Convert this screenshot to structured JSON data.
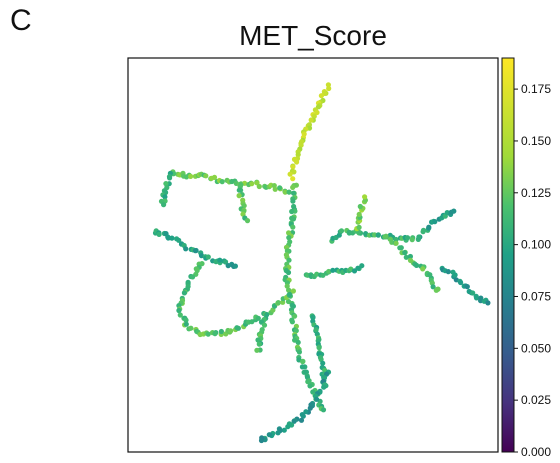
{
  "panel_letter": "C",
  "chart_data": {
    "type": "scatter",
    "title": "MET_Score",
    "xlabel": "",
    "ylabel": "",
    "axes_ticks": "none",
    "grid": false,
    "color_scale": {
      "name": "viridis",
      "min": 0.0,
      "max": 0.19,
      "ticks": [
        0.0,
        0.025,
        0.05,
        0.075,
        0.1,
        0.125,
        0.15,
        0.175
      ],
      "tick_labels": [
        "0.000",
        "0.025",
        "0.050",
        "0.075",
        "0.100",
        "0.125",
        "0.150",
        "0.175"
      ],
      "placement": "right"
    },
    "xlim": [
      0,
      100
    ],
    "ylim": [
      0,
      100
    ],
    "branches": [
      {
        "points": [
          [
            54,
            93
          ],
          [
            52,
            89
          ],
          [
            50,
            85
          ],
          [
            48,
            81
          ],
          [
            46,
            77
          ],
          [
            45,
            73
          ],
          [
            44,
            69
          ]
        ],
        "score": 0.16
      },
      {
        "points": [
          [
            12,
            71
          ],
          [
            16,
            70
          ],
          [
            20,
            70
          ],
          [
            25,
            69
          ],
          [
            30,
            68
          ],
          [
            35,
            68
          ],
          [
            40,
            67
          ],
          [
            44,
            66
          ]
        ],
        "score": 0.125
      },
      {
        "points": [
          [
            12,
            71
          ],
          [
            10,
            66
          ],
          [
            9,
            62
          ]
        ],
        "score": 0.11
      },
      {
        "points": [
          [
            30,
            68
          ],
          [
            31,
            62
          ],
          [
            32,
            58
          ]
        ],
        "score": 0.12
      },
      {
        "points": [
          [
            45,
            68
          ],
          [
            45,
            62
          ],
          [
            44,
            56
          ],
          [
            43,
            50
          ],
          [
            43,
            44
          ],
          [
            44,
            38
          ],
          [
            45,
            32
          ],
          [
            46,
            25
          ]
        ],
        "score": 0.12
      },
      {
        "points": [
          [
            46,
            25
          ],
          [
            48,
            20
          ],
          [
            50,
            16
          ],
          [
            53,
            10
          ]
        ],
        "score": 0.11
      },
      {
        "points": [
          [
            7,
            56
          ],
          [
            10,
            55
          ],
          [
            14,
            53
          ],
          [
            18,
            51
          ],
          [
            22,
            49
          ],
          [
            26,
            48
          ],
          [
            30,
            47
          ]
        ],
        "score": 0.095
      },
      {
        "points": [
          [
            20,
            48
          ],
          [
            17,
            44
          ],
          [
            15,
            40
          ],
          [
            14,
            36
          ],
          [
            16,
            32
          ],
          [
            20,
            30
          ],
          [
            24,
            30
          ],
          [
            29,
            31
          ],
          [
            33,
            33
          ],
          [
            37,
            35
          ],
          [
            41,
            38
          ],
          [
            45,
            41
          ]
        ],
        "score": 0.12
      },
      {
        "points": [
          [
            37,
            35
          ],
          [
            36,
            30
          ],
          [
            35,
            25
          ]
        ],
        "score": 0.115
      },
      {
        "points": [
          [
            48,
            45
          ],
          [
            52,
            45
          ],
          [
            56,
            46
          ],
          [
            60,
            46
          ],
          [
            64,
            47
          ]
        ],
        "score": 0.11
      },
      {
        "points": [
          [
            55,
            54
          ],
          [
            58,
            56
          ],
          [
            62,
            56
          ],
          [
            66,
            55
          ],
          [
            70,
            55
          ],
          [
            74,
            54
          ],
          [
            78,
            54
          ]
        ],
        "score": 0.11
      },
      {
        "points": [
          [
            62,
            56
          ],
          [
            63,
            61
          ],
          [
            64,
            65
          ]
        ],
        "score": 0.13
      },
      {
        "points": [
          [
            70,
            55
          ],
          [
            74,
            51
          ],
          [
            78,
            48
          ],
          [
            82,
            44
          ],
          [
            84,
            40
          ]
        ],
        "score": 0.12
      },
      {
        "points": [
          [
            78,
            54
          ],
          [
            82,
            58
          ],
          [
            86,
            60
          ],
          [
            89,
            62
          ]
        ],
        "score": 0.095
      },
      {
        "points": [
          [
            85,
            47
          ],
          [
            89,
            44
          ],
          [
            92,
            41
          ],
          [
            95,
            39
          ],
          [
            98,
            38
          ]
        ],
        "score": 0.09
      },
      {
        "points": [
          [
            50,
            35
          ],
          [
            51,
            30
          ],
          [
            52,
            25
          ],
          [
            53,
            20
          ],
          [
            53,
            16
          ]
        ],
        "score": 0.105
      },
      {
        "points": [
          [
            54,
            20
          ],
          [
            52,
            15
          ],
          [
            49,
            11
          ],
          [
            46,
            8
          ],
          [
            42,
            6
          ],
          [
            38,
            4
          ],
          [
            35,
            3
          ]
        ],
        "score": 0.09
      }
    ]
  }
}
